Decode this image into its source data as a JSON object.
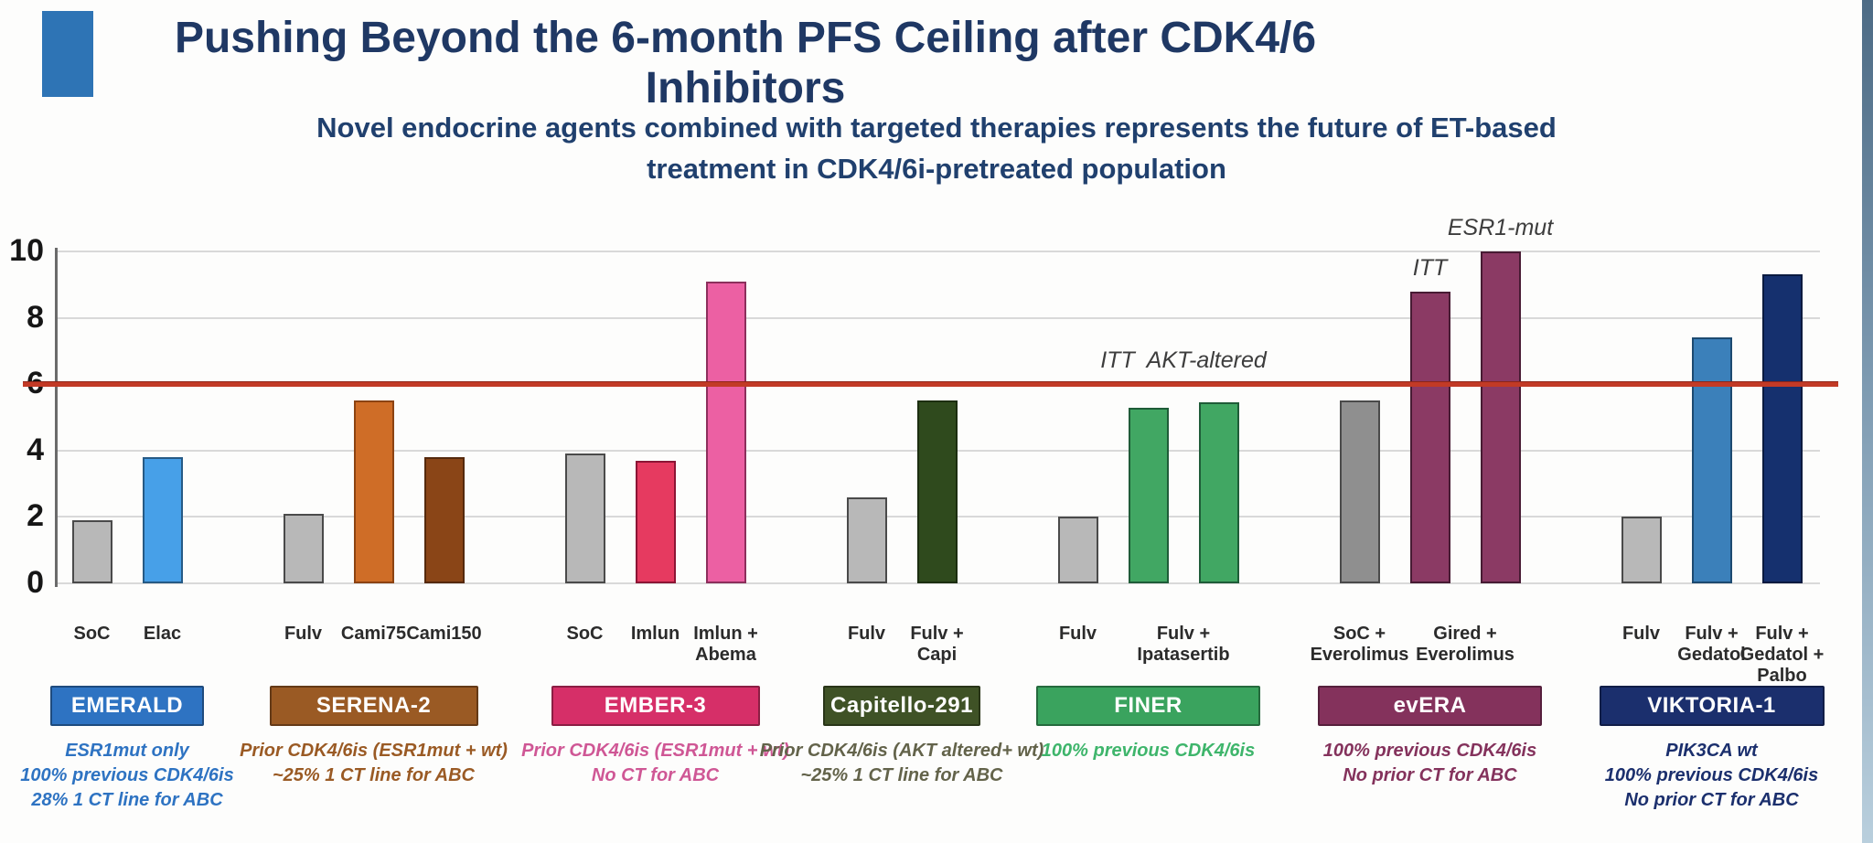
{
  "slide": {
    "title": "Pushing Beyond the 6-month PFS Ceiling after CDK4/6 Inhibitors",
    "subtitle": "Novel endocrine agents combined with targeted therapies represents the future of ET-based treatment in CDK4/6i-pretreated population",
    "accent_color": "#2e74b5",
    "title_color": "#1f3864"
  },
  "chart_data": {
    "type": "bar",
    "title": "",
    "xlabel": "",
    "ylabel": "",
    "ylim": [
      0,
      10
    ],
    "yticks": [
      0,
      2,
      4,
      6,
      8,
      10
    ],
    "grid": true,
    "legend_position": "none",
    "threshold_line": {
      "value": 6,
      "color": "#c23a26"
    },
    "groups": [
      {
        "trial": "EMERALD",
        "banner": {
          "label": "EMERALD",
          "bg": "#2e73c2"
        },
        "footnote": {
          "lines": [
            "ESR1mut only",
            "100% previous CDK4/6is",
            "28% 1 CT line for ABC"
          ],
          "color": "#2e73c2"
        },
        "bars": [
          {
            "name": "SoC",
            "value": 1.9,
            "fill": "#b8b8b8",
            "border": "#4a4a4a"
          },
          {
            "name": "Elac",
            "value": 3.8,
            "fill": "#47a0e8",
            "border": "#265a85"
          }
        ],
        "xlabels": [
          {
            "lines": [
              "SoC"
            ],
            "bars": [
              0
            ]
          },
          {
            "lines": [
              "Elac"
            ],
            "bars": [
              1
            ]
          }
        ]
      },
      {
        "trial": "SERENA-2",
        "banner": {
          "label": "SERENA-2",
          "bg": "#9a5a24"
        },
        "footnote": {
          "lines": [
            "Prior CDK4/6is (ESR1mut + wt)",
            "~25% 1 CT line for ABC"
          ],
          "color": "#9a5a24"
        },
        "bars": [
          {
            "name": "Fulv",
            "value": 2.1,
            "fill": "#b8b8b8",
            "border": "#4a4a4a"
          },
          {
            "name": "Cami75",
            "value": 5.5,
            "fill": "#cf6d27",
            "border": "#8c4312"
          },
          {
            "name": "Cami150",
            "value": 3.8,
            "fill": "#8a4517",
            "border": "#55290c"
          }
        ],
        "xlabels": [
          {
            "lines": [
              "Fulv"
            ],
            "bars": [
              0
            ]
          },
          {
            "lines": [
              "Cami75"
            ],
            "bars": [
              1
            ]
          },
          {
            "lines": [
              "Cami150"
            ],
            "bars": [
              2
            ]
          }
        ]
      },
      {
        "trial": "EMBER-3",
        "banner": {
          "label": "EMBER-3",
          "bg": "#d62f68"
        },
        "footnote": {
          "lines": [
            "Prior CDK4/6is (ESR1mut + wt)",
            "No CT for ABC"
          ],
          "color": "#cf5795"
        },
        "bars": [
          {
            "name": "SoC",
            "value": 3.9,
            "fill": "#b8b8b8",
            "border": "#4a4a4a"
          },
          {
            "name": "Imlun",
            "value": 3.7,
            "fill": "#e63a60",
            "border": "#8c1535"
          },
          {
            "name": "Imlun + Abema",
            "value": 9.1,
            "fill": "#ec60a3",
            "border": "#8c2f5c"
          }
        ],
        "xlabels": [
          {
            "lines": [
              "SoC"
            ],
            "bars": [
              0
            ]
          },
          {
            "lines": [
              "Imlun"
            ],
            "bars": [
              1
            ]
          },
          {
            "lines": [
              "Imlun +",
              "Abema"
            ],
            "bars": [
              2
            ]
          }
        ]
      },
      {
        "trial": "Capitello-291",
        "banner": {
          "label": "Capitello-291",
          "bg": "#3f5226"
        },
        "footnote": {
          "lines": [
            "Prior CDK4/6is (AKT altered+ wt)",
            "~25% 1 CT line for ABC"
          ],
          "color": "#63634a"
        },
        "bars": [
          {
            "name": "Fulv",
            "value": 2.6,
            "fill": "#b8b8b8",
            "border": "#4a4a4a"
          },
          {
            "name": "Fulv + Capi",
            "value": 5.5,
            "fill": "#2f4a1d",
            "border": "#1c2e10"
          }
        ],
        "xlabels": [
          {
            "lines": [
              "Fulv"
            ],
            "bars": [
              0
            ]
          },
          {
            "lines": [
              "Fulv +",
              "Capi"
            ],
            "bars": [
              1
            ]
          }
        ]
      },
      {
        "trial": "FINER",
        "banner": {
          "label": "FINER",
          "bg": "#3aa35e"
        },
        "footnote": {
          "lines": [
            "100% previous CDK4/6is"
          ],
          "color": "#3eb56b"
        },
        "bars": [
          {
            "name": "Fulv",
            "value": 2.0,
            "fill": "#b8b8b8",
            "border": "#4a4a4a"
          },
          {
            "name": "Fulv + Ipatasertib (ITT)",
            "value": 5.3,
            "fill": "#41a763",
            "border": "#1f5c38"
          },
          {
            "name": "Fulv + Ipatasertib (AKT-altered)",
            "value": 5.45,
            "fill": "#41a763",
            "border": "#1f5c38"
          }
        ],
        "xlabels": [
          {
            "lines": [
              "Fulv"
            ],
            "bars": [
              0
            ]
          },
          {
            "lines": [
              "Fulv +",
              "Ipatasertib"
            ],
            "bars": [
              1,
              2
            ]
          }
        ]
      },
      {
        "trial": "evERA",
        "banner": {
          "label": "evERA",
          "bg": "#84325c"
        },
        "footnote": {
          "lines": [
            "100% previous CDK4/6is",
            "No prior CT for ABC"
          ],
          "color": "#84325c"
        },
        "bars": [
          {
            "name": "SoC + Everolimus",
            "value": 5.5,
            "fill": "#8f8f8f",
            "border": "#4a4a4a"
          },
          {
            "name": "Gired + Everolimus (ITT)",
            "value": 8.8,
            "fill": "#8b3a64",
            "border": "#471b33"
          },
          {
            "name": "Gired + Everolimus (ESR1-mut)",
            "value": 10.0,
            "fill": "#8b3a64",
            "border": "#471b33"
          }
        ],
        "xlabels": [
          {
            "lines": [
              "SoC +",
              "Everolimus"
            ],
            "bars": [
              0
            ]
          },
          {
            "lines": [
              "Gired +",
              "Everolimus"
            ],
            "bars": [
              1,
              2
            ]
          }
        ]
      },
      {
        "trial": "VIKTORIA-1",
        "banner": {
          "label": "VIKTORIA-1",
          "bg": "#1b2f6d"
        },
        "footnote": {
          "lines": [
            "PIK3CA wt",
            "100% previous CDK4/6is",
            "No prior CT for ABC"
          ],
          "color": "#1b2f6d"
        },
        "bars": [
          {
            "name": "Fulv",
            "value": 2.0,
            "fill": "#b8b8b8",
            "border": "#4a4a4a"
          },
          {
            "name": "Fulv + Gedatol",
            "value": 7.4,
            "fill": "#3b80ba",
            "border": "#1d4a70"
          },
          {
            "name": "Fulv + Gedatol + Palbo",
            "value": 9.3,
            "fill": "#15306e",
            "border": "#0a1a40"
          }
        ],
        "xlabels": [
          {
            "lines": [
              "Fulv"
            ],
            "bars": [
              0
            ]
          },
          {
            "lines": [
              "Fulv +",
              "Gedatol"
            ],
            "bars": [
              1
            ]
          },
          {
            "lines": [
              "Fulv +",
              "Gedatol +",
              "Palbo"
            ],
            "bars": [
              2
            ]
          }
        ]
      }
    ],
    "annotations": [
      {
        "text": "ITT  AKT-altered",
        "group": 4,
        "bars": [
          1,
          2
        ]
      },
      {
        "text": "ITT",
        "group": 5,
        "bars": [
          1
        ]
      },
      {
        "text": "ESR1-mut",
        "group": 5,
        "bars": [
          2
        ]
      }
    ]
  }
}
